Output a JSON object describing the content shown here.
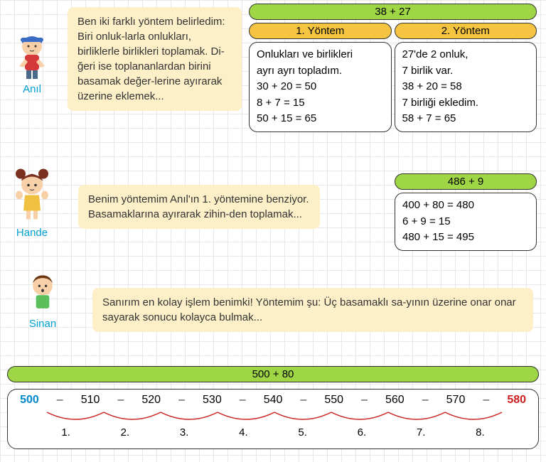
{
  "chars": {
    "anil": {
      "name": "Anıl",
      "text": "Ben iki farklı yöntem belirledim: Biri onluk-larla onlukları, birliklerle birlikleri toplamak. Di-ğeri ise toplananlardan birini basamak değer-lerine ayırarak üzerine eklemek...",
      "color_hat": "#3a6bc5",
      "color_shirt": "#d43a3a",
      "skin": "#f8d0a8",
      "hair": "#8b5a2b"
    },
    "hande": {
      "name": "Hande",
      "text": "Benim yöntemim Anıl'ın 1. yöntemine benziyor. Basamaklarına ayırarak zihin-den toplamak...",
      "color_hair": "#7a3020",
      "color_shirt": "#f0c040",
      "skin": "#f8d0a8"
    },
    "sinan": {
      "name": "Sinan",
      "text": "Sanırım en kolay işlem benimki! Yöntemim şu: Üç basamaklı sa-yının üzerine onar onar sayarak sonucu kolayca bulmak...",
      "color_hair": "#6b3515",
      "color_shirt": "#5abf5a",
      "skin": "#f8d0a8"
    }
  },
  "top": {
    "header": "38 + 27",
    "m1_title": "1. Yöntem",
    "m2_title": "2. Yöntem",
    "m1_lines": [
      "Onlukları ve birlikleri",
      "ayrı ayrı topladım.",
      "30 + 20 = 50",
      "8 + 7 = 15",
      "50 + 15 = 65"
    ],
    "m2_lines": [
      "27'de 2 onluk,",
      "7 birlik var.",
      "38 + 20 = 58",
      "7 birliği ekledim.",
      "58 + 7 = 65"
    ]
  },
  "mid": {
    "header": "486 + 9",
    "lines": [
      "400 + 80 = 480",
      "6 + 9 = 15",
      "480 + 15 = 495"
    ]
  },
  "bot": {
    "header": "500 + 80",
    "nums": [
      "500",
      "510",
      "520",
      "530",
      "540",
      "550",
      "560",
      "570",
      "580"
    ],
    "labels": [
      "1.",
      "2.",
      "3.",
      "4.",
      "5.",
      "6.",
      "7.",
      "8."
    ]
  },
  "colors": {
    "green": "#9fd645",
    "orange": "#f5c542",
    "bubble": "#fdf0c8",
    "blue": "#0088cc",
    "red": "#cc2020",
    "arc": "#cc2020"
  }
}
